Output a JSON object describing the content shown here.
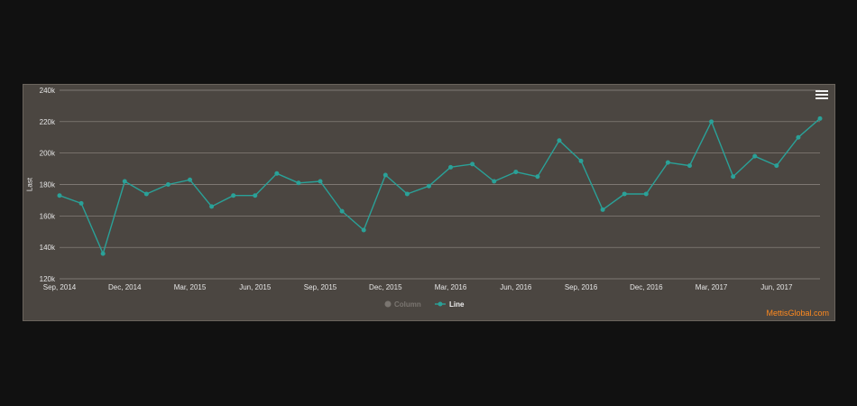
{
  "colors": {
    "page_background": "#111111",
    "chart_background": "#4b4641",
    "gridline": "#8f8a84",
    "series_line": "#2aa198",
    "legend_inactive": "#7a7570",
    "credit": "#ff8a1f"
  },
  "menu": {
    "icon": "hamburger-menu-icon"
  },
  "credit": {
    "text": "MettisGlobal.com"
  },
  "chart_data": {
    "type": "line",
    "title": "",
    "xlabel": "",
    "ylabel": "Last",
    "ylim": [
      120000,
      240000
    ],
    "yticks": [
      120000,
      140000,
      160000,
      180000,
      200000,
      220000,
      240000
    ],
    "ytick_labels": [
      "120k",
      "140k",
      "160k",
      "180k",
      "200k",
      "220k",
      "240k"
    ],
    "xticks": [
      {
        "date": "2014-09",
        "label": "Sep, 2014"
      },
      {
        "date": "2014-12",
        "label": "Dec, 2014"
      },
      {
        "date": "2015-03",
        "label": "Mar, 2015"
      },
      {
        "date": "2015-06",
        "label": "Jun, 2015"
      },
      {
        "date": "2015-09",
        "label": "Sep, 2015"
      },
      {
        "date": "2015-12",
        "label": "Dec, 2015"
      },
      {
        "date": "2016-03",
        "label": "Mar, 2016"
      },
      {
        "date": "2016-06",
        "label": "Jun, 2016"
      },
      {
        "date": "2016-09",
        "label": "Sep, 2016"
      },
      {
        "date": "2016-12",
        "label": "Dec, 2016"
      },
      {
        "date": "2017-03",
        "label": "Mar, 2017"
      },
      {
        "date": "2017-06",
        "label": "Jun, 2017"
      }
    ],
    "grid": true,
    "legend_position": "bottom-center",
    "legend": [
      {
        "name": "Column",
        "active": false
      },
      {
        "name": "Line",
        "active": true
      }
    ],
    "series": [
      {
        "name": "Line",
        "x": [
          "2014-09",
          "2014-10",
          "2014-11",
          "2014-12",
          "2015-01",
          "2015-02",
          "2015-03",
          "2015-04",
          "2015-05",
          "2015-06",
          "2015-07",
          "2015-08",
          "2015-09",
          "2015-10",
          "2015-11",
          "2015-12",
          "2016-01",
          "2016-02",
          "2016-03",
          "2016-04",
          "2016-05",
          "2016-06",
          "2016-07",
          "2016-08",
          "2016-09",
          "2016-10",
          "2016-11",
          "2016-12",
          "2017-01",
          "2017-02",
          "2017-03",
          "2017-04",
          "2017-05",
          "2017-06",
          "2017-07",
          "2017-08"
        ],
        "values": [
          173000,
          168000,
          136000,
          182000,
          174000,
          180000,
          183000,
          166000,
          173000,
          173000,
          187000,
          181000,
          182000,
          163000,
          151000,
          186000,
          174000,
          179000,
          191000,
          193000,
          182000,
          188000,
          185000,
          208000,
          195000,
          164000,
          174000,
          174000,
          194000,
          192000,
          220000,
          185000,
          198000,
          192000,
          210000,
          222000
        ]
      }
    ]
  }
}
